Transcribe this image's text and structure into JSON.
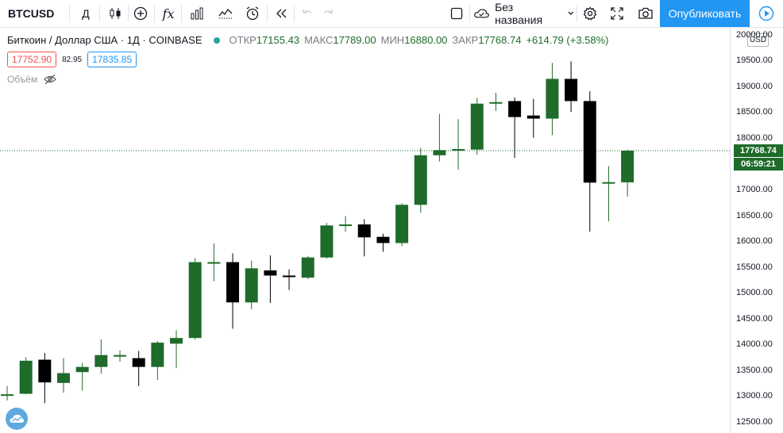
{
  "toolbar": {
    "symbol": "BTCUSD",
    "interval": "Д",
    "indicators_glyph": "fx",
    "layout_name": "Без названия",
    "publish_label": "Опубликовать"
  },
  "legend": {
    "title": "Биткоин / Доллар США · 1Д · COINBASE",
    "open_label": "ОТКР",
    "open": "17155.43",
    "high_label": "МАКС",
    "high": "17789.00",
    "low_label": "МИН",
    "low": "16880.00",
    "close_label": "ЗАКР",
    "close": "17768.74",
    "change": "+614.79 (+3.58%)"
  },
  "prices": {
    "bid": "17752.90",
    "spread": "82.95",
    "ask": "17835.85"
  },
  "volume": {
    "label": "Объём"
  },
  "axis": {
    "currency": "USD",
    "ticks": [
      "20000.00",
      "19500.00",
      "19000.00",
      "18500.00",
      "18000.00",
      "17500.00",
      "17000.00",
      "16500.00",
      "16000.00",
      "15500.00",
      "15000.00",
      "14500.00",
      "14000.00",
      "13500.00",
      "13000.00",
      "12500.00"
    ],
    "last_price": "17768.74",
    "countdown": "06:59:21"
  },
  "colors": {
    "up": "#1f6b2a",
    "down": "#000000",
    "accent": "#2196f3"
  },
  "chart_data": {
    "type": "candlestick",
    "ylim": [
      12300,
      20150
    ],
    "candles": [
      {
        "o": 13030,
        "h": 13210,
        "l": 12930,
        "c": 13050
      },
      {
        "o": 13060,
        "h": 13770,
        "l": 13050,
        "c": 13700
      },
      {
        "o": 13720,
        "h": 13850,
        "l": 12880,
        "c": 13280
      },
      {
        "o": 13270,
        "h": 13750,
        "l": 13080,
        "c": 13460
      },
      {
        "o": 13480,
        "h": 13660,
        "l": 13120,
        "c": 13580
      },
      {
        "o": 13580,
        "h": 14110,
        "l": 13450,
        "c": 13810
      },
      {
        "o": 13790,
        "h": 13900,
        "l": 13680,
        "c": 13810
      },
      {
        "o": 13750,
        "h": 13890,
        "l": 13210,
        "c": 13580
      },
      {
        "o": 13580,
        "h": 14080,
        "l": 13330,
        "c": 14050
      },
      {
        "o": 14030,
        "h": 14290,
        "l": 13560,
        "c": 14140
      },
      {
        "o": 14140,
        "h": 15690,
        "l": 14110,
        "c": 15610
      },
      {
        "o": 15610,
        "h": 15970,
        "l": 15240,
        "c": 15610
      },
      {
        "o": 15610,
        "h": 15780,
        "l": 14320,
        "c": 14830
      },
      {
        "o": 14830,
        "h": 15640,
        "l": 14700,
        "c": 15490
      },
      {
        "o": 15450,
        "h": 15740,
        "l": 14820,
        "c": 15350
      },
      {
        "o": 15350,
        "h": 15470,
        "l": 15070,
        "c": 15320
      },
      {
        "o": 15310,
        "h": 15730,
        "l": 15280,
        "c": 15700
      },
      {
        "o": 15700,
        "h": 16370,
        "l": 15680,
        "c": 16320
      },
      {
        "o": 16320,
        "h": 16500,
        "l": 16200,
        "c": 16340
      },
      {
        "o": 16340,
        "h": 16440,
        "l": 15720,
        "c": 16090
      },
      {
        "o": 16100,
        "h": 16160,
        "l": 15810,
        "c": 15980
      },
      {
        "o": 15980,
        "h": 16750,
        "l": 15920,
        "c": 16720
      },
      {
        "o": 16720,
        "h": 17820,
        "l": 16570,
        "c": 17680
      },
      {
        "o": 17680,
        "h": 18480,
        "l": 17560,
        "c": 17780
      },
      {
        "o": 17770,
        "h": 18380,
        "l": 17400,
        "c": 17800
      },
      {
        "o": 17790,
        "h": 18790,
        "l": 17690,
        "c": 18680
      },
      {
        "o": 18690,
        "h": 18890,
        "l": 18540,
        "c": 18710
      },
      {
        "o": 18730,
        "h": 18800,
        "l": 17630,
        "c": 18420
      },
      {
        "o": 18450,
        "h": 18770,
        "l": 18020,
        "c": 18390
      },
      {
        "o": 18390,
        "h": 19470,
        "l": 18070,
        "c": 19160
      },
      {
        "o": 19160,
        "h": 19500,
        "l": 18520,
        "c": 18730
      },
      {
        "o": 18730,
        "h": 18920,
        "l": 16200,
        "c": 17150
      },
      {
        "o": 17150,
        "h": 17470,
        "l": 16400,
        "c": 17160
      },
      {
        "o": 17155.43,
        "h": 17789,
        "l": 16880,
        "c": 17768.74
      }
    ]
  }
}
